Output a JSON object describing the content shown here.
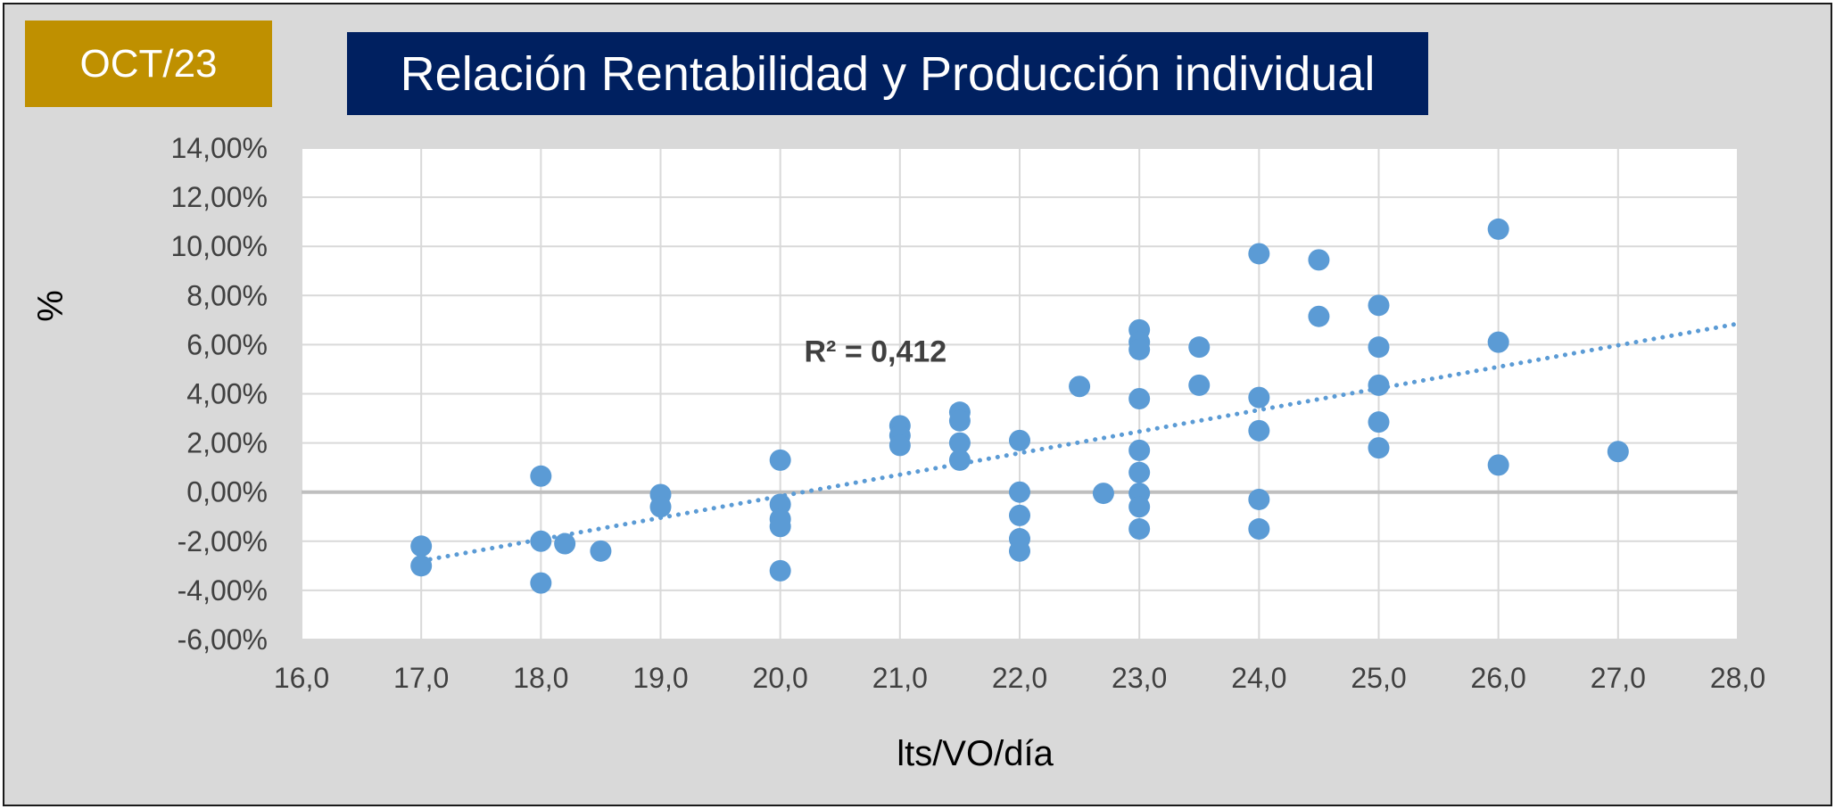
{
  "badge": {
    "label": "OCT/23"
  },
  "colors": {
    "badge_bg": "#bf9000",
    "title_bg": "#002060",
    "points": "#5b9bd5",
    "trendline": "#5b9bd5",
    "zero_line": "#bfbfbf"
  },
  "chart_data": {
    "type": "scatter",
    "title": "Relación Rentabilidad y Producción individual",
    "xlabel": "lts/VO/día",
    "ylabel": "%",
    "xlim": [
      16,
      28
    ],
    "ylim": [
      -6,
      14
    ],
    "x_step": 1,
    "y_step": 2,
    "x_tick_labels": [
      "16,0",
      "17,0",
      "18,0",
      "19,0",
      "20,0",
      "21,0",
      "22,0",
      "23,0",
      "24,0",
      "25,0",
      "26,0",
      "27,0",
      "28,0"
    ],
    "y_tick_labels": [
      "-6,00%",
      "-4,00%",
      "-2,00%",
      "0,00%",
      "2,00%",
      "4,00%",
      "6,00%",
      "8,00%",
      "10,00%",
      "12,00%",
      "14,00%"
    ],
    "grid": true,
    "legend": "none",
    "points": [
      {
        "x": 17.0,
        "y": -2.2
      },
      {
        "x": 17.0,
        "y": -3.0
      },
      {
        "x": 18.0,
        "y": 0.65
      },
      {
        "x": 18.0,
        "y": -2.0
      },
      {
        "x": 18.0,
        "y": -3.7
      },
      {
        "x": 18.2,
        "y": -2.1
      },
      {
        "x": 18.5,
        "y": -2.4
      },
      {
        "x": 19.0,
        "y": -0.1
      },
      {
        "x": 19.0,
        "y": -0.6
      },
      {
        "x": 20.0,
        "y": 1.3
      },
      {
        "x": 20.0,
        "y": -0.5
      },
      {
        "x": 20.0,
        "y": -1.1
      },
      {
        "x": 20.0,
        "y": -1.4
      },
      {
        "x": 20.0,
        "y": -3.2
      },
      {
        "x": 21.0,
        "y": 2.7
      },
      {
        "x": 21.0,
        "y": 2.3
      },
      {
        "x": 21.0,
        "y": 1.9
      },
      {
        "x": 21.5,
        "y": 3.25
      },
      {
        "x": 21.5,
        "y": 2.9
      },
      {
        "x": 21.5,
        "y": 2.0
      },
      {
        "x": 21.5,
        "y": 1.3
      },
      {
        "x": 22.0,
        "y": 2.1
      },
      {
        "x": 22.0,
        "y": 0.0
      },
      {
        "x": 22.0,
        "y": -0.95
      },
      {
        "x": 22.0,
        "y": -1.9
      },
      {
        "x": 22.0,
        "y": -2.4
      },
      {
        "x": 22.5,
        "y": 4.3
      },
      {
        "x": 22.7,
        "y": -0.05
      },
      {
        "x": 23.0,
        "y": 6.6
      },
      {
        "x": 23.0,
        "y": 6.1
      },
      {
        "x": 23.0,
        "y": 5.8
      },
      {
        "x": 23.0,
        "y": 3.8
      },
      {
        "x": 23.0,
        "y": 1.7
      },
      {
        "x": 23.0,
        "y": 0.8
      },
      {
        "x": 23.0,
        "y": -0.05
      },
      {
        "x": 23.0,
        "y": -0.6
      },
      {
        "x": 23.0,
        "y": -1.5
      },
      {
        "x": 23.5,
        "y": 5.9
      },
      {
        "x": 23.5,
        "y": 4.35
      },
      {
        "x": 24.0,
        "y": 9.7
      },
      {
        "x": 24.0,
        "y": 3.85
      },
      {
        "x": 24.0,
        "y": 2.5
      },
      {
        "x": 24.0,
        "y": -0.3
      },
      {
        "x": 24.0,
        "y": -1.5
      },
      {
        "x": 24.5,
        "y": 9.45
      },
      {
        "x": 24.5,
        "y": 7.15
      },
      {
        "x": 25.0,
        "y": 7.6
      },
      {
        "x": 25.0,
        "y": 5.9
      },
      {
        "x": 25.0,
        "y": 4.35
      },
      {
        "x": 25.0,
        "y": 2.85
      },
      {
        "x": 25.0,
        "y": 1.8
      },
      {
        "x": 26.0,
        "y": 10.7
      },
      {
        "x": 26.0,
        "y": 6.1
      },
      {
        "x": 26.0,
        "y": 1.1
      },
      {
        "x": 27.0,
        "y": 1.65
      }
    ],
    "trendline": {
      "type": "linear",
      "x": [
        17,
        28
      ],
      "y": [
        -2.8,
        6.85
      ],
      "style": "dotted"
    },
    "annotations": [
      {
        "text": "R² = 0,412",
        "x": 20.2,
        "y": 5.3
      }
    ]
  }
}
